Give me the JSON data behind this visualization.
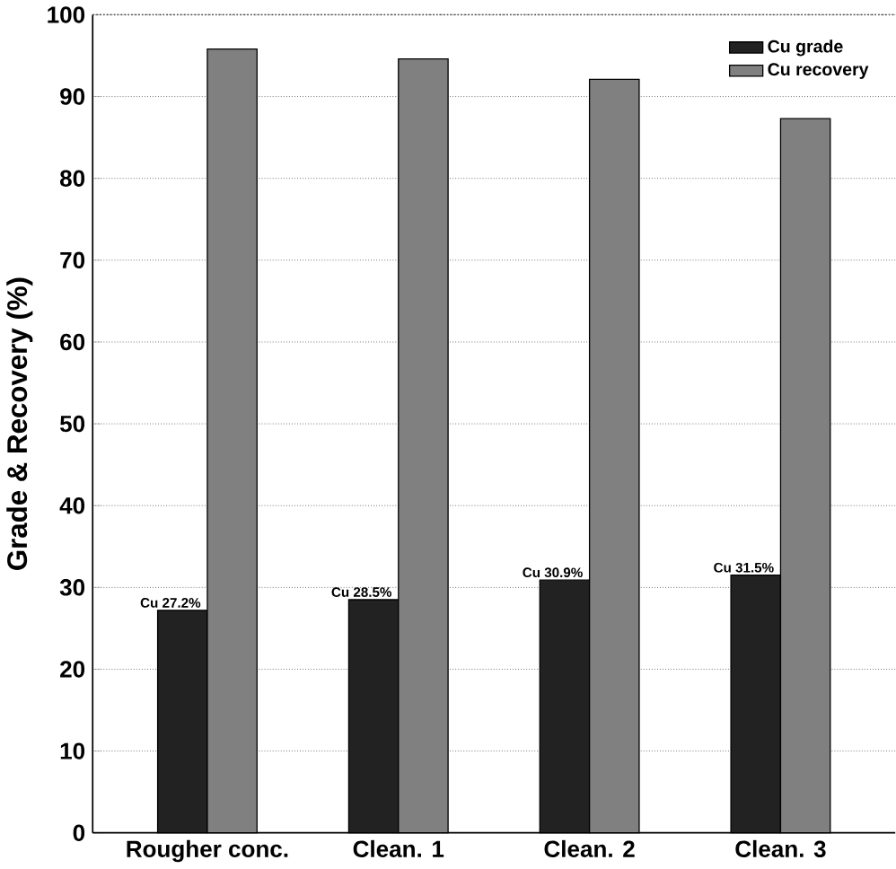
{
  "chart_data": {
    "type": "bar",
    "ylabel": "Grade & Recovery (%)",
    "categories": [
      "Rougher conc.",
      "Clean. 1",
      "Clean. 2",
      "Clean. 3"
    ],
    "series": [
      {
        "name": "Cu grade",
        "color": "#222222",
        "values": [
          27.2,
          28.5,
          30.9,
          31.5
        ],
        "value_labels": [
          "Cu 27.2%",
          "Cu 28.5%",
          "Cu 30.9%",
          "Cu 31.5%"
        ]
      },
      {
        "name": "Cu recovery",
        "color": "#808080",
        "values": [
          95.8,
          94.6,
          92.1,
          87.3
        ]
      }
    ],
    "ylim": [
      0,
      100
    ],
    "yticks": [
      0,
      10,
      20,
      30,
      40,
      50,
      60,
      70,
      80,
      90,
      100
    ],
    "grid": "y",
    "legend": "top right"
  }
}
